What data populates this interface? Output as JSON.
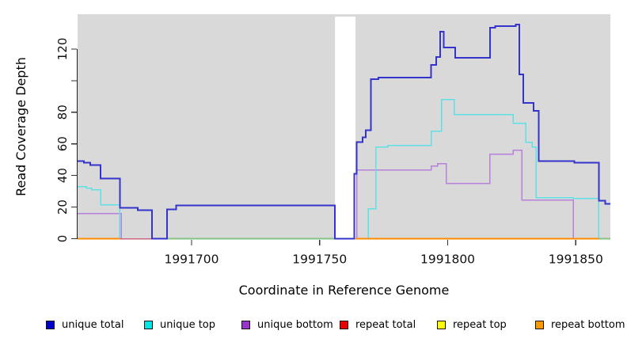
{
  "chart_data": {
    "type": "line",
    "step": true,
    "title": "",
    "xlabel": "Coordinate in Reference Genome",
    "ylabel": "Read Coverage Depth",
    "xlim": [
      1991655.5,
      1991863.5
    ],
    "ylim": [
      0,
      142
    ],
    "x_ticks": [
      1991700,
      1991750,
      1991800,
      1991850
    ],
    "y_ticks": [
      0,
      20,
      40,
      60,
      80,
      100,
      120
    ],
    "y_tick_labels": [
      "0",
      "20",
      "40",
      "60",
      "80",
      "",
      "120"
    ],
    "grid": false,
    "background": "#d9d9d9",
    "gap_region": {
      "x_start": 1991756,
      "x_end": 1991764,
      "color": "#ffffff"
    },
    "legend_position": "bottom",
    "series": [
      {
        "name": "unique bottom",
        "color": "#b780da",
        "width": 1.5,
        "points": [
          [
            1991655.5,
            16
          ],
          [
            1991672.5,
            0
          ],
          [
            1991764.5,
            43.5
          ],
          [
            1991793.5,
            46
          ],
          [
            1991796,
            47.5
          ],
          [
            1991799.5,
            35
          ],
          [
            1991816.5,
            53.5
          ],
          [
            1991825.5,
            56
          ],
          [
            1991829,
            24.5
          ],
          [
            1991849,
            0
          ]
        ]
      },
      {
        "name": "unique top",
        "color": "#5fe0e4",
        "width": 1.5,
        "points": [
          [
            1991655.5,
            33
          ],
          [
            1991659,
            32
          ],
          [
            1991661,
            31
          ],
          [
            1991664.5,
            21.5
          ],
          [
            1991672,
            0
          ],
          [
            1991769,
            19
          ],
          [
            1991772,
            58
          ],
          [
            1991776.5,
            59
          ],
          [
            1991793.5,
            68
          ],
          [
            1991797.5,
            88
          ],
          [
            1991802.5,
            78.5
          ],
          [
            1991825.5,
            73
          ],
          [
            1991830.5,
            61
          ],
          [
            1991833,
            58
          ],
          [
            1991834.5,
            26
          ],
          [
            1991849,
            25.5
          ],
          [
            1991859,
            0
          ]
        ]
      },
      {
        "name": "repeat total",
        "color": "#cc6680",
        "width": 1.5,
        "level": 0,
        "segments": [
          [
            1991672,
            1991685
          ]
        ]
      },
      {
        "name": "repeat top",
        "color": "#85c285",
        "width": 1.6,
        "level": 0,
        "segments": [
          [
            1991685,
            1991756
          ],
          [
            1991859,
            1991863.5
          ]
        ]
      },
      {
        "name": "repeat bottom",
        "color": "#ff8c00",
        "width": 2,
        "level": 0,
        "segments": [
          [
            1991655.5,
            1991672
          ],
          [
            1991764,
            1991859
          ]
        ]
      },
      {
        "name": "unique total",
        "color": "#3434cd",
        "width": 2,
        "above_gap": true,
        "points": [
          [
            1991655.5,
            49
          ],
          [
            1991658,
            48
          ],
          [
            1991660.5,
            46.5
          ],
          [
            1991664.5,
            38
          ],
          [
            1991672,
            19.5
          ],
          [
            1991679,
            18
          ],
          [
            1991684.5,
            0
          ],
          [
            1991690.5,
            18.5
          ],
          [
            1991694,
            21
          ],
          [
            1991756,
            0
          ],
          [
            1991763.5,
            41
          ],
          [
            1991764.5,
            61
          ],
          [
            1991766.8,
            64
          ],
          [
            1991768,
            68.5
          ],
          [
            1991770,
            101
          ],
          [
            1991773,
            102
          ],
          [
            1991793.5,
            110
          ],
          [
            1991795.5,
            115
          ],
          [
            1991797,
            131
          ],
          [
            1991798.5,
            121
          ],
          [
            1991803,
            114.5
          ],
          [
            1991816.5,
            133.5
          ],
          [
            1991818.5,
            134.5
          ],
          [
            1991826.5,
            135.5
          ],
          [
            1991828,
            104
          ],
          [
            1991829.5,
            86
          ],
          [
            1991833.5,
            81
          ],
          [
            1991835.5,
            49
          ],
          [
            1991849.5,
            48
          ],
          [
            1991859,
            24
          ],
          [
            1991861.5,
            22
          ]
        ]
      }
    ],
    "legend": [
      {
        "label": "unique total",
        "color": "#0000cc"
      },
      {
        "label": "unique top",
        "color": "#00e6e6"
      },
      {
        "label": "unique bottom",
        "color": "#9933cc"
      },
      {
        "label": "repeat total",
        "color": "#ee0000"
      },
      {
        "label": "repeat top",
        "color": "#ffff00"
      },
      {
        "label": "repeat bottom",
        "color": "#ff9900"
      }
    ]
  }
}
